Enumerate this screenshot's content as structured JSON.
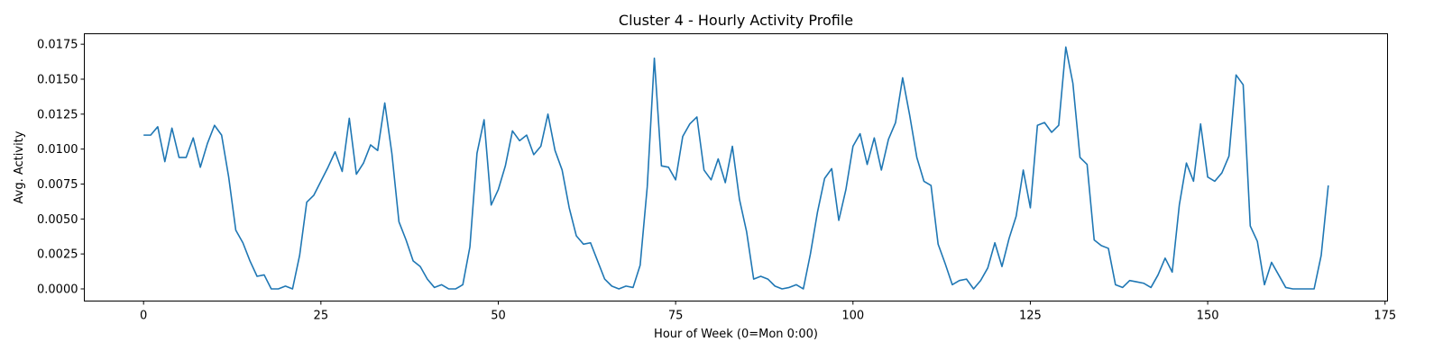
{
  "chart_data": {
    "type": "line",
    "title": "Cluster 4 - Hourly Activity Profile",
    "xlabel": "Hour of Week (0=Mon 0:00)",
    "ylabel": "Avg. Activity",
    "xlim": [
      -8.35,
      175.35
    ],
    "ylim": [
      -0.00087,
      0.01825
    ],
    "x_ticks": [
      0,
      25,
      50,
      75,
      100,
      125,
      150,
      175
    ],
    "x_tick_labels": [
      "0",
      "25",
      "50",
      "75",
      "100",
      "125",
      "150",
      "175"
    ],
    "y_ticks": [
      0.0,
      0.0025,
      0.005,
      0.0075,
      0.01,
      0.0125,
      0.015,
      0.0175
    ],
    "y_tick_labels": [
      "0.0000",
      "0.0025",
      "0.0050",
      "0.0075",
      "0.0100",
      "0.0125",
      "0.0150",
      "0.0175"
    ],
    "grid": false,
    "line_color": "#1f77b4",
    "x": [
      0,
      1,
      2,
      3,
      4,
      5,
      6,
      7,
      8,
      9,
      10,
      11,
      12,
      13,
      14,
      15,
      16,
      17,
      18,
      19,
      20,
      21,
      22,
      23,
      24,
      25,
      26,
      27,
      28,
      29,
      30,
      31,
      32,
      33,
      34,
      35,
      36,
      37,
      38,
      39,
      40,
      41,
      42,
      43,
      44,
      45,
      46,
      47,
      48,
      49,
      50,
      51,
      52,
      53,
      54,
      55,
      56,
      57,
      58,
      59,
      60,
      61,
      62,
      63,
      64,
      65,
      66,
      67,
      68,
      69,
      70,
      71,
      72,
      73,
      74,
      75,
      76,
      77,
      78,
      79,
      80,
      81,
      82,
      83,
      84,
      85,
      86,
      87,
      88,
      89,
      90,
      91,
      92,
      93,
      94,
      95,
      96,
      97,
      98,
      99,
      100,
      101,
      102,
      103,
      104,
      105,
      106,
      107,
      108,
      109,
      110,
      111,
      112,
      113,
      114,
      115,
      116,
      117,
      118,
      119,
      120,
      121,
      122,
      123,
      124,
      125,
      126,
      127,
      128,
      129,
      130,
      131,
      132,
      133,
      134,
      135,
      136,
      137,
      138,
      139,
      140,
      141,
      142,
      143,
      144,
      145,
      146,
      147,
      148,
      149,
      150,
      151,
      152,
      153,
      154,
      155,
      156,
      157,
      158,
      159,
      160,
      161,
      162,
      163,
      164,
      165,
      166,
      167
    ],
    "y": [
      0.011,
      0.011,
      0.0116,
      0.0091,
      0.0115,
      0.0094,
      0.0094,
      0.0108,
      0.0087,
      0.0104,
      0.0117,
      0.011,
      0.008,
      0.0042,
      0.0033,
      0.002,
      0.0009,
      0.001,
      0.0,
      0.0,
      0.0002,
      0.0,
      0.0024,
      0.0062,
      0.0067,
      0.0077,
      0.0087,
      0.0098,
      0.0084,
      0.0122,
      0.0082,
      0.009,
      0.0103,
      0.0099,
      0.0133,
      0.0097,
      0.0048,
      0.0035,
      0.002,
      0.0016,
      0.0007,
      0.0001,
      0.0003,
      0.0,
      0.0,
      0.0003,
      0.003,
      0.0097,
      0.0121,
      0.006,
      0.0071,
      0.0088,
      0.0113,
      0.0106,
      0.011,
      0.0096,
      0.0102,
      0.0125,
      0.0099,
      0.0085,
      0.0058,
      0.0038,
      0.0032,
      0.0033,
      0.002,
      0.0007,
      0.0002,
      0.0,
      0.0002,
      0.0001,
      0.0017,
      0.0073,
      0.0165,
      0.0088,
      0.0087,
      0.0078,
      0.0109,
      0.0118,
      0.0123,
      0.0085,
      0.0078,
      0.0093,
      0.0076,
      0.0102,
      0.0064,
      0.0041,
      0.0007,
      0.0009,
      0.0007,
      0.0002,
      0.0,
      0.0001,
      0.0003,
      0.0,
      0.0025,
      0.0055,
      0.0079,
      0.0086,
      0.0049,
      0.0071,
      0.0102,
      0.0111,
      0.0089,
      0.0108,
      0.0085,
      0.0107,
      0.0119,
      0.0151,
      0.0124,
      0.0094,
      0.0077,
      0.0074,
      0.0032,
      0.0018,
      0.0003,
      0.0006,
      0.0007,
      0.0,
      0.0006,
      0.0015,
      0.0033,
      0.0016,
      0.0036,
      0.0052,
      0.0085,
      0.0058,
      0.0117,
      0.0119,
      0.0112,
      0.0117,
      0.0173,
      0.0147,
      0.0094,
      0.0089,
      0.0035,
      0.0031,
      0.0029,
      0.0003,
      0.0001,
      0.0006,
      0.0005,
      0.0004,
      0.0001,
      0.001,
      0.0022,
      0.0012,
      0.006,
      0.009,
      0.0077,
      0.0118,
      0.008,
      0.0077,
      0.0083,
      0.0095,
      0.0153,
      0.0146,
      0.0045,
      0.0034,
      0.0003,
      0.0019,
      0.001,
      0.0001,
      0.0,
      0.0,
      0.0,
      0.0,
      0.0024,
      0.0074
    ]
  }
}
